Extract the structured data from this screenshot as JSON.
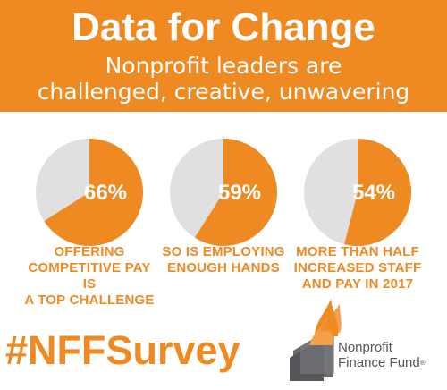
{
  "header": {
    "title": "Data for Change",
    "subtitle_line1": "Nonprofit leaders are",
    "subtitle_line2": "challenged, creative, unwavering"
  },
  "chart_data": {
    "type": "pie",
    "colors": {
      "highlight": "#ef8a22",
      "rest": "#e0e0e0"
    },
    "charts": [
      {
        "value": 66,
        "label": "66%",
        "caption_lines": [
          "OFFERING",
          "COMPETITIVE PAY IS",
          "A TOP CHALLENGE"
        ]
      },
      {
        "value": 59,
        "label": "59%",
        "caption_lines": [
          "SO IS EMPLOYING",
          "ENOUGH HANDS"
        ]
      },
      {
        "value": 54,
        "label": "54%",
        "caption_lines": [
          "MORE THAN HALF",
          "INCREASED STAFF",
          "AND PAY IN 2017"
        ]
      }
    ]
  },
  "footer": {
    "hashtag": "#NFFSurvey",
    "org_line1": "Nonprofit",
    "org_line2": "Finance Fund",
    "registered_mark": "®"
  },
  "colors": {
    "brand_orange": "#ef8a22",
    "logo_gray": "#55565a",
    "pie_gray": "#e0e0e0"
  }
}
